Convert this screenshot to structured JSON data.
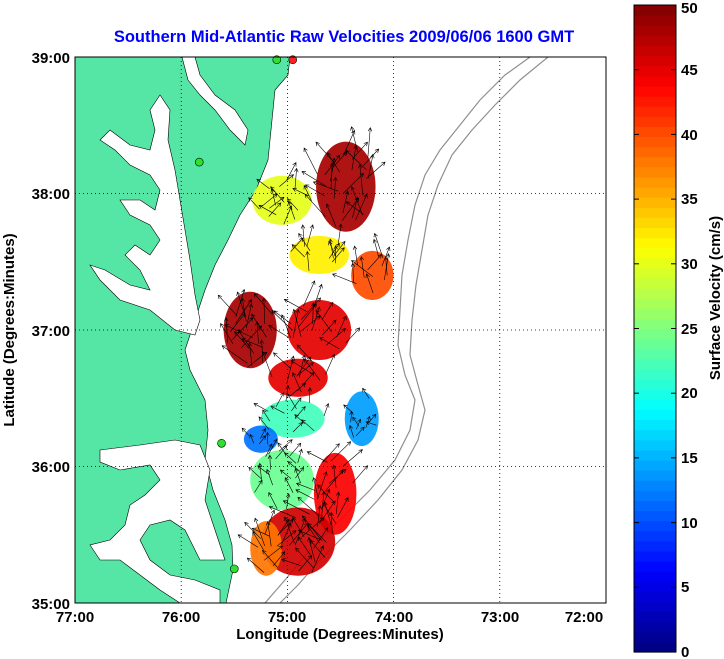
{
  "chart_data": {
    "type": "heatmap",
    "title": "Southern Mid-Atlantic Raw Velocities 2009/06/06 1600 GMT",
    "xlabel": "Longitude (Degrees:Minutes)",
    "ylabel": "Latitude (Degrees:Minutes)",
    "colorbar_label": "Surface Velocity (cm/s)",
    "x_ticks": [
      "77:00",
      "76:00",
      "75:00",
      "74:00",
      "73:00",
      "72:00"
    ],
    "y_ticks": [
      "39:00",
      "38:00",
      "37:00",
      "36:00",
      "35:00"
    ],
    "colorbar_ticks": [
      "0",
      "5",
      "10",
      "15",
      "20",
      "25",
      "30",
      "35",
      "40",
      "45",
      "50"
    ],
    "xlim": [
      -77.0,
      -72.0
    ],
    "ylim": [
      35.0,
      39.0
    ],
    "clim": [
      0,
      50
    ],
    "colormap": "jet",
    "land_color": "#55e6a5",
    "grid": "dotted",
    "fields": [
      {
        "lon": -75.35,
        "lat": 37.0,
        "speed": 48,
        "rx": 0.25,
        "ry": 0.28
      },
      {
        "lon": -74.7,
        "lat": 37.0,
        "speed": 45,
        "rx": 0.3,
        "ry": 0.22
      },
      {
        "lon": -74.45,
        "lat": 38.05,
        "speed": 48,
        "rx": 0.28,
        "ry": 0.33
      },
      {
        "lon": -74.2,
        "lat": 37.4,
        "speed": 40,
        "rx": 0.2,
        "ry": 0.18
      },
      {
        "lon": -74.7,
        "lat": 37.55,
        "speed": 32,
        "rx": 0.28,
        "ry": 0.14
      },
      {
        "lon": -75.05,
        "lat": 37.95,
        "speed": 30,
        "rx": 0.28,
        "ry": 0.18
      },
      {
        "lon": -74.9,
        "lat": 36.65,
        "speed": 45,
        "rx": 0.28,
        "ry": 0.14
      },
      {
        "lon": -74.3,
        "lat": 36.35,
        "speed": 14,
        "rx": 0.16,
        "ry": 0.2
      },
      {
        "lon": -74.95,
        "lat": 36.35,
        "speed": 22,
        "rx": 0.3,
        "ry": 0.14
      },
      {
        "lon": -75.25,
        "lat": 36.2,
        "speed": 12,
        "rx": 0.16,
        "ry": 0.1
      },
      {
        "lon": -75.05,
        "lat": 35.9,
        "speed": 24,
        "rx": 0.3,
        "ry": 0.22
      },
      {
        "lon": -74.55,
        "lat": 35.8,
        "speed": 44,
        "rx": 0.2,
        "ry": 0.3
      },
      {
        "lon": -74.9,
        "lat": 35.45,
        "speed": 46,
        "rx": 0.35,
        "ry": 0.25
      },
      {
        "lon": -75.2,
        "lat": 35.4,
        "speed": 38,
        "rx": 0.15,
        "ry": 0.2
      }
    ],
    "vector_field": {
      "mean_direction_deg": 100,
      "max_speed": 50
    },
    "stations": [
      {
        "lon": -74.95,
        "lat": 38.98,
        "status": "offline"
      },
      {
        "lon": -75.1,
        "lat": 38.98,
        "status": "online"
      },
      {
        "lon": -75.83,
        "lat": 38.23,
        "status": "online"
      },
      {
        "lon": -75.62,
        "lat": 36.17,
        "status": "online"
      },
      {
        "lon": -75.5,
        "lat": 35.25,
        "status": "online"
      }
    ]
  }
}
